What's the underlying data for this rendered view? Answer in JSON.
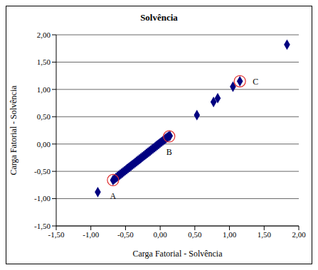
{
  "chart_data": {
    "type": "scatter",
    "title": "Solvência",
    "x_label": "Carga Fatorial - Solvência",
    "y_label": "Carga Fatorial - Solvência",
    "color": "#000080",
    "marker": "diamond",
    "grid": true,
    "x": [
      -0.9,
      -0.68,
      -0.66,
      -0.64,
      -0.62,
      -0.6,
      -0.58,
      -0.56,
      -0.54,
      -0.52,
      -0.5,
      -0.48,
      -0.46,
      -0.44,
      -0.42,
      -0.4,
      -0.38,
      -0.36,
      -0.34,
      -0.32,
      -0.3,
      -0.28,
      -0.26,
      -0.24,
      -0.22,
      -0.2,
      -0.18,
      -0.16,
      -0.14,
      -0.12,
      -0.1,
      -0.08,
      -0.06,
      -0.04,
      -0.02,
      0.0,
      0.02,
      0.04,
      0.06,
      0.08,
      0.1,
      0.12,
      0.14,
      0.53,
      0.77,
      0.83,
      1.05,
      1.15,
      1.83
    ],
    "values": [
      -0.88,
      -0.66,
      -0.64,
      -0.62,
      -0.6,
      -0.58,
      -0.56,
      -0.54,
      -0.52,
      -0.5,
      -0.48,
      -0.46,
      -0.44,
      -0.42,
      -0.4,
      -0.38,
      -0.36,
      -0.34,
      -0.32,
      -0.3,
      -0.28,
      -0.26,
      -0.24,
      -0.22,
      -0.2,
      -0.18,
      -0.16,
      -0.14,
      -0.12,
      -0.1,
      -0.08,
      -0.06,
      -0.04,
      -0.02,
      0.0,
      0.02,
      0.04,
      0.06,
      0.08,
      0.1,
      0.12,
      0.14,
      0.15,
      0.53,
      0.77,
      0.84,
      1.05,
      1.15,
      1.82
    ],
    "xlim": [
      -1.5,
      2.0
    ],
    "xticks": [
      {
        "value": -1.5,
        "label": "-1,50"
      },
      {
        "value": -1.0,
        "label": "-1,00"
      },
      {
        "value": -0.5,
        "label": "-0,50"
      },
      {
        "value": 0.0,
        "label": "0,00"
      },
      {
        "value": 0.5,
        "label": "0,50"
      },
      {
        "value": 1.0,
        "label": "1,00"
      },
      {
        "value": 1.5,
        "label": "1,50"
      },
      {
        "value": 2.0,
        "label": "2,00"
      }
    ],
    "ylim": [
      -1.5,
      2.0
    ],
    "yticks": [
      {
        "value": -1.5,
        "label": "-1,50"
      },
      {
        "value": -1.0,
        "label": "-1,00"
      },
      {
        "value": -0.5,
        "label": "-0,50"
      },
      {
        "value": 0.0,
        "label": "0,00"
      },
      {
        "value": 0.5,
        "label": "0,50"
      },
      {
        "value": 1.0,
        "label": "1,00"
      },
      {
        "value": 1.5,
        "label": "1,50"
      },
      {
        "value": 2.0,
        "label": "2,00"
      }
    ],
    "annotations": [
      {
        "text": "A",
        "x": -0.68,
        "y": -0.66
      },
      {
        "text": "B",
        "x": 0.13,
        "y": 0.14
      },
      {
        "text": "C",
        "x": 1.15,
        "y": 1.15
      }
    ]
  }
}
